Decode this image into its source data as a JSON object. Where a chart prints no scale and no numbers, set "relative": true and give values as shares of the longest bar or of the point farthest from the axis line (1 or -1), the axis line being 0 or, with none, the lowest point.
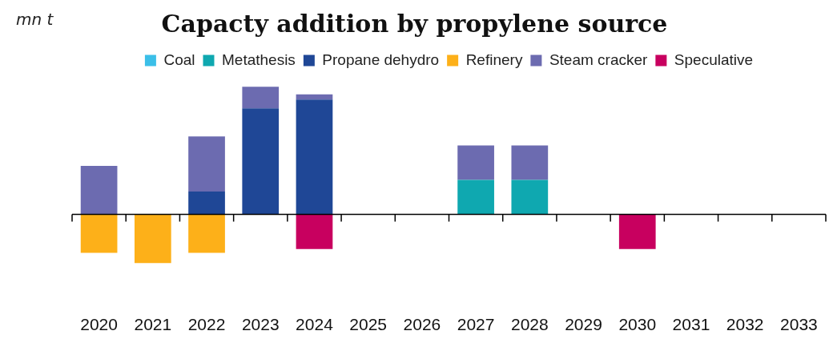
{
  "chart_data": {
    "type": "bar",
    "title": "Capacty addition by propylene source",
    "ylabel": "mn t",
    "relative": true,
    "stacked": true,
    "legend": "top",
    "grid": false,
    "categories": [
      "2020",
      "2021",
      "2022",
      "2023",
      "2024",
      "2025",
      "2026",
      "2027",
      "2028",
      "2029",
      "2030",
      "2031",
      "2032",
      "2033"
    ],
    "series": [
      {
        "name": "Coal",
        "color": "#3bbfe8",
        "values": [
          null,
          null,
          null,
          null,
          null,
          null,
          null,
          null,
          null,
          null,
          null,
          null,
          null,
          null
        ]
      },
      {
        "name": "Metathesis",
        "color": "#0fa8b0",
        "values": [
          null,
          null,
          null,
          null,
          null,
          null,
          null,
          0.27,
          0.27,
          null,
          null,
          null,
          null,
          null
        ]
      },
      {
        "name": "Propane dehydro",
        "color": "#1f4796",
        "values": [
          null,
          null,
          0.18,
          0.83,
          0.9,
          null,
          null,
          null,
          null,
          null,
          null,
          null,
          null,
          null
        ]
      },
      {
        "name": "Refinery",
        "color": "#fdb019",
        "values": [
          -0.3,
          -0.38,
          -0.3,
          null,
          null,
          null,
          null,
          null,
          null,
          null,
          null,
          null,
          null,
          null
        ]
      },
      {
        "name": "Steam cracker",
        "color": "#6c6bb0",
        "values": [
          0.38,
          null,
          0.43,
          0.17,
          0.04,
          null,
          null,
          0.27,
          0.27,
          null,
          null,
          null,
          null,
          null
        ]
      },
      {
        "name": "Speculative",
        "color": "#c8005f",
        "values": [
          null,
          null,
          null,
          null,
          -0.27,
          null,
          null,
          null,
          null,
          null,
          -0.27,
          null,
          null,
          null
        ]
      }
    ]
  }
}
